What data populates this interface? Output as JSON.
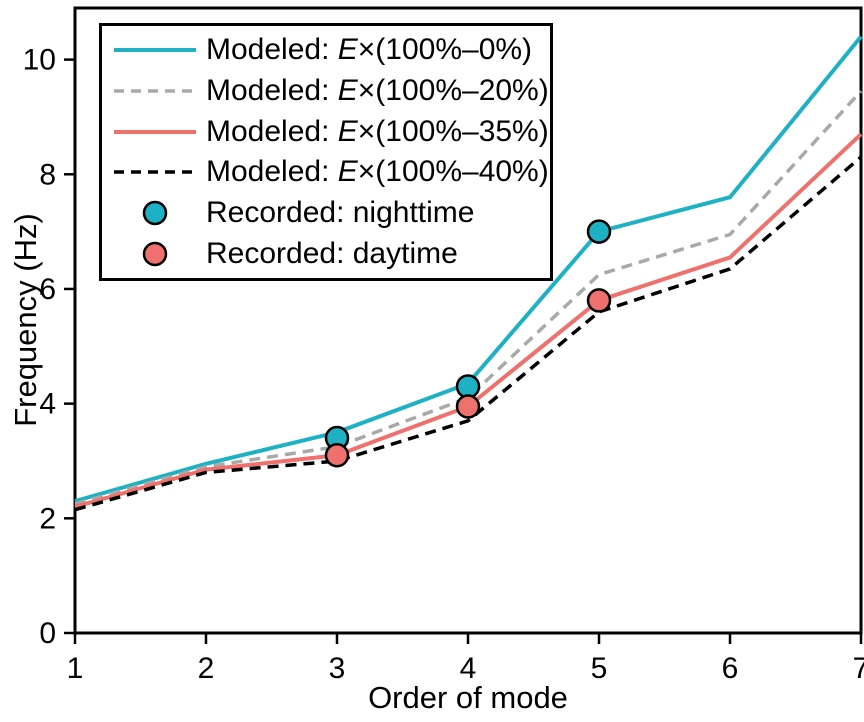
{
  "chart_data": {
    "type": "line",
    "x": [
      1,
      2,
      3,
      4,
      5,
      6,
      7
    ],
    "series": [
      {
        "name": "Modeled: E×(100%–0%)",
        "color": "#1eb1c4",
        "dash": "solid",
        "values": [
          2.3,
          2.95,
          3.5,
          4.35,
          7.0,
          7.6,
          10.4
        ]
      },
      {
        "name": "Modeled: E×(100%–20%)",
        "color": "#a9a9a9",
        "dash": "dashed",
        "values": [
          2.25,
          2.9,
          3.25,
          4.1,
          6.25,
          6.95,
          9.45
        ]
      },
      {
        "name": "Modeled: E×(100%–35%)",
        "color": "#ee716d",
        "dash": "solid",
        "values": [
          2.2,
          2.85,
          3.1,
          3.95,
          5.8,
          6.55,
          8.7
        ]
      },
      {
        "name": "Modeled: E×(100%–40%)",
        "color": "#000000",
        "dash": "dashed",
        "values": [
          2.15,
          2.8,
          3.0,
          3.7,
          5.6,
          6.35,
          8.3
        ]
      }
    ],
    "scatter": [
      {
        "name": "Recorded: nighttime",
        "color": "#1eb1c4",
        "x": [
          3,
          4,
          5
        ],
        "values": [
          3.4,
          4.3,
          7.0
        ]
      },
      {
        "name": "Recorded: daytime",
        "color": "#ee716d",
        "x": [
          3,
          4,
          5
        ],
        "values": [
          3.1,
          3.95,
          5.8
        ]
      }
    ],
    "title": "",
    "xlabel": "Order of mode",
    "ylabel": "Frequency (Hz)",
    "xlim": [
      1,
      7
    ],
    "ylim": [
      0,
      10.9
    ],
    "xticks": [
      "1",
      "2",
      "3",
      "4",
      "5",
      "6",
      "7"
    ],
    "xtick_values": [
      1,
      2,
      3,
      4,
      5,
      6,
      7
    ],
    "yticks": [
      "0",
      "2",
      "4",
      "6",
      "8",
      "10"
    ],
    "ytick_values": [
      0,
      2,
      4,
      6,
      8,
      10
    ],
    "grid": false,
    "legend_position": "top-left"
  },
  "legend": {
    "items": [
      {
        "kind": "line",
        "color": "#1eb1c4",
        "dash": "solid",
        "prefix": "Modeled: ",
        "emph": "E",
        "rest": "×(100%–0%)"
      },
      {
        "kind": "line",
        "color": "#a9a9a9",
        "dash": "dashed",
        "prefix": "Modeled: ",
        "emph": "E",
        "rest": "×(100%–20%)"
      },
      {
        "kind": "line",
        "color": "#ee716d",
        "dash": "solid",
        "prefix": "Modeled: ",
        "emph": "E",
        "rest": "×(100%–35%)"
      },
      {
        "kind": "line",
        "color": "#000000",
        "dash": "dashed",
        "prefix": "Modeled: ",
        "emph": "E",
        "rest": "×(100%–40%)"
      },
      {
        "kind": "marker",
        "color": "#1eb1c4",
        "dash": "solid",
        "prefix": "Recorded: nighttime",
        "emph": "",
        "rest": ""
      },
      {
        "kind": "marker",
        "color": "#ee716d",
        "dash": "solid",
        "prefix": "Recorded: daytime",
        "emph": "",
        "rest": ""
      }
    ]
  }
}
